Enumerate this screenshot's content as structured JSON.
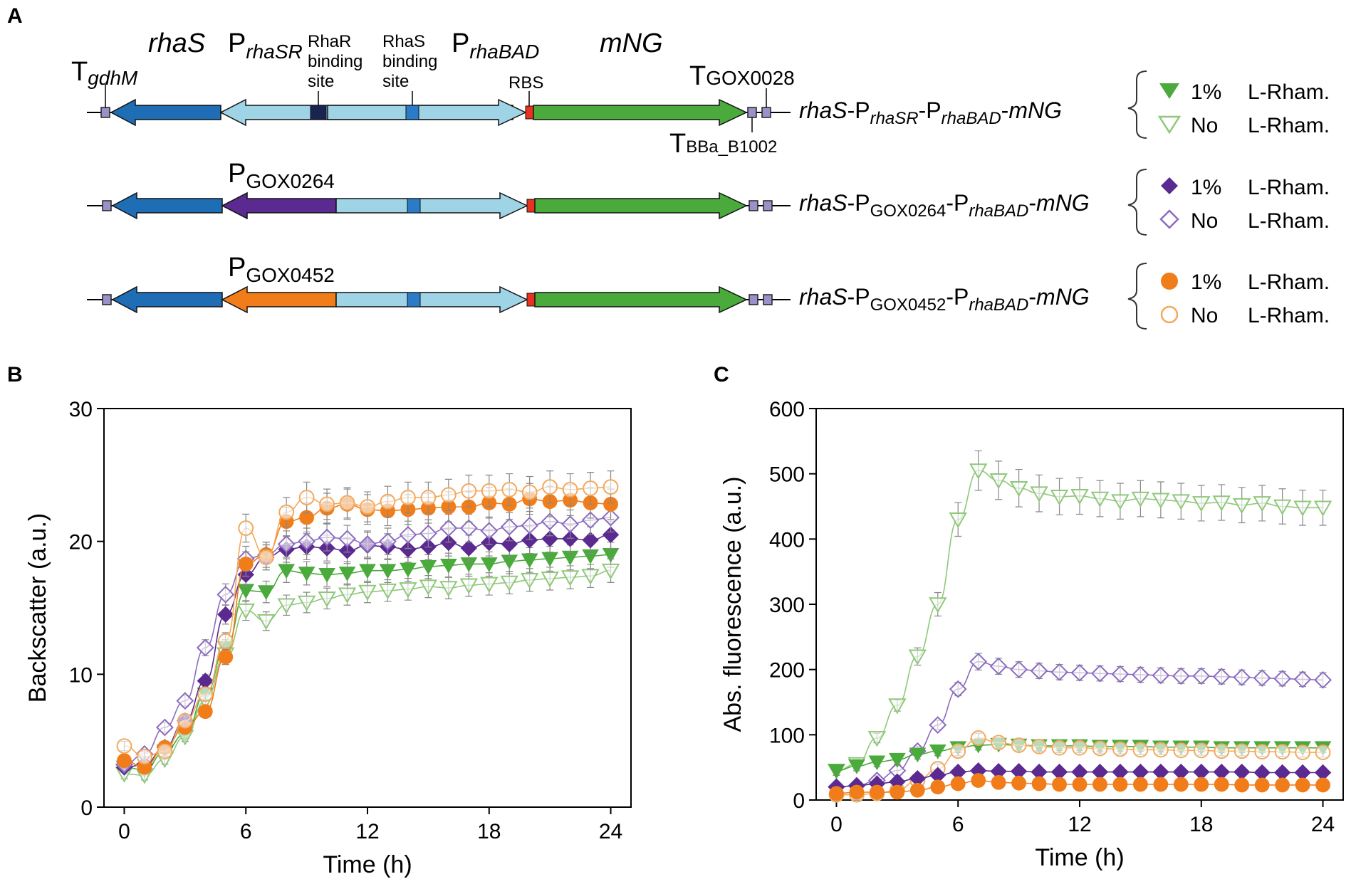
{
  "panels": {
    "a": "A",
    "b": "B",
    "c": "C"
  },
  "genes": {
    "rhaS": "rhaS",
    "mNG": "mNG",
    "p": "P",
    "t": "T",
    "rhaSR_sub": "rhaSR",
    "rhaBAD_sub": "rhaBAD",
    "gdhM_sub": "gdhM",
    "gox0028_sub": "GOX0028",
    "bba_sub": "BBa_B1002",
    "gox0264_sub": "GOX0264",
    "gox0452_sub": "GOX0452"
  },
  "site_labels": {
    "rhaR_l1": "RhaR",
    "rhaR_l2": "binding",
    "rhaR_l3": "site",
    "rhaS_l1": "RhaS",
    "rhaS_l2": "binding",
    "rhaS_l3": "site",
    "rbs": "RBS"
  },
  "constructs": [
    {
      "pre": "rhaS",
      "dash1": "-P",
      "sub1": "rhaSR",
      "dash2": "-P",
      "sub2": "rhaBAD",
      "dash3": "-",
      "post": "mNG"
    },
    {
      "pre": "rhaS",
      "dash1": "-P",
      "sub1": "GOX0264",
      "dash2": "-P",
      "sub2": "rhaBAD",
      "dash3": "-",
      "post": "mNG"
    },
    {
      "pre": "rhaS",
      "dash1": "-P",
      "sub1": "GOX0452",
      "dash2": "-P",
      "sub2": "rhaBAD",
      "dash3": "-",
      "post": "mNG"
    }
  ],
  "legend": {
    "induced": "1%",
    "uninduced": "No",
    "compound": "L-Rham."
  },
  "colors": {
    "green": "#4aaa3c",
    "green_light": "#8fc87a",
    "purple": "#5b2a91",
    "purple_light": "#8c6bbf",
    "orange": "#f07d1a",
    "orange_light": "#f2a95e",
    "blue_dark": "#1f6db5",
    "blue_light": "#9fd3e6",
    "blue_mid": "#2a7cc6",
    "navy": "#1a2450",
    "red": "#e8321e",
    "term": "#9c90c8"
  },
  "chart_data": [
    {
      "type": "scatter",
      "id": "B",
      "xlabel": "Time (h)",
      "ylabel": "Backscatter (a.u.)",
      "xlim": [
        -1,
        25
      ],
      "ylim": [
        0,
        30
      ],
      "xticks": [
        "0",
        "6",
        "12",
        "18",
        "24"
      ],
      "xtick_values": [
        0,
        6,
        12,
        18,
        24
      ],
      "yticks": [
        "0",
        "10",
        "20",
        "30"
      ],
      "ytick_values": [
        0,
        10,
        20,
        30
      ],
      "x": [
        0,
        1,
        2,
        3,
        4,
        5,
        6,
        7,
        8,
        9,
        10,
        11,
        12,
        13,
        14,
        15,
        16,
        17,
        18,
        19,
        20,
        21,
        22,
        23,
        24
      ],
      "series": [
        {
          "name": "rhaSR 1% L-Rham.",
          "marker": "triangle-down",
          "filled": true,
          "color": "green",
          "values": [
            3.0,
            2.8,
            4.2,
            5.5,
            8.5,
            12.0,
            16.3,
            16.2,
            17.8,
            17.6,
            17.5,
            17.6,
            17.8,
            17.8,
            17.9,
            18.1,
            18.2,
            18.3,
            18.3,
            18.5,
            18.6,
            18.7,
            18.8,
            18.9,
            19.0
          ]
        },
        {
          "name": "rhaSR No L-Rham.",
          "marker": "triangle-down",
          "filled": false,
          "color": "green_light",
          "values": [
            2.5,
            2.4,
            3.6,
            5.3,
            8.0,
            11.5,
            14.8,
            14.0,
            15.2,
            15.4,
            15.7,
            16.0,
            16.2,
            16.3,
            16.4,
            16.6,
            16.5,
            16.7,
            16.8,
            16.9,
            17.1,
            17.2,
            17.3,
            17.4,
            17.8
          ]
        },
        {
          "name": "GOX0264 1% L-Rham.",
          "marker": "diamond",
          "filled": true,
          "color": "purple",
          "values": [
            3.0,
            3.2,
            4.5,
            6.5,
            9.5,
            14.5,
            17.5,
            18.8,
            19.4,
            19.6,
            19.5,
            19.3,
            19.7,
            19.6,
            19.4,
            19.6,
            19.9,
            19.5,
            19.9,
            19.8,
            20.1,
            20.2,
            20.2,
            20.1,
            20.5
          ]
        },
        {
          "name": "GOX0264 No L-Rham.",
          "marker": "diamond",
          "filled": false,
          "color": "purple_light",
          "values": [
            3.2,
            4.0,
            6.0,
            8.0,
            12.0,
            16.0,
            18.7,
            19.0,
            19.8,
            20.0,
            20.3,
            20.2,
            19.8,
            20.0,
            20.5,
            20.6,
            21.0,
            21.0,
            20.8,
            21.1,
            21.2,
            21.5,
            21.3,
            21.6,
            21.8
          ]
        },
        {
          "name": "GOX0452 1% L-Rham.",
          "marker": "circle",
          "filled": true,
          "color": "orange",
          "values": [
            3.5,
            3.0,
            4.5,
            6.0,
            7.2,
            11.3,
            18.3,
            19.0,
            21.5,
            21.8,
            22.5,
            22.8,
            22.4,
            22.3,
            22.4,
            22.5,
            22.6,
            22.6,
            22.9,
            22.8,
            23.2,
            23.0,
            23.1,
            22.9,
            22.8
          ]
        },
        {
          "name": "GOX0452 No L-Rham.",
          "marker": "circle",
          "filled": false,
          "color": "orange_light",
          "values": [
            4.6,
            3.8,
            4.2,
            6.5,
            8.5,
            12.5,
            21.0,
            18.8,
            22.2,
            23.3,
            22.8,
            22.9,
            22.6,
            23.0,
            23.3,
            23.3,
            23.5,
            23.8,
            23.8,
            23.9,
            23.7,
            24.1,
            23.9,
            24.0,
            24.1
          ]
        }
      ]
    },
    {
      "type": "scatter",
      "id": "C",
      "xlabel": "Time (h)",
      "ylabel": "Abs. fluorescence (a.u.)",
      "xlim": [
        -1,
        25
      ],
      "ylim": [
        0,
        600
      ],
      "xticks": [
        "0",
        "6",
        "12",
        "18",
        "24"
      ],
      "xtick_values": [
        0,
        6,
        12,
        18,
        24
      ],
      "yticks": [
        "0",
        "100",
        "200",
        "300",
        "400",
        "500",
        "600"
      ],
      "ytick_values": [
        0,
        100,
        200,
        300,
        400,
        500,
        600
      ],
      "x": [
        0,
        1,
        2,
        3,
        4,
        5,
        6,
        7,
        8,
        9,
        10,
        11,
        12,
        13,
        14,
        15,
        16,
        17,
        18,
        19,
        20,
        21,
        22,
        23,
        24
      ],
      "series": [
        {
          "name": "rhaSR No L-Rham.",
          "marker": "triangle-down",
          "filled": false,
          "color": "green_light",
          "values": [
            45,
            55,
            95,
            145,
            220,
            300,
            430,
            505,
            490,
            478,
            470,
            465,
            466,
            462,
            458,
            462,
            460,
            458,
            455,
            456,
            452,
            455,
            450,
            448,
            448
          ]
        },
        {
          "name": "GOX0264 No L-Rham.",
          "marker": "diamond",
          "filled": false,
          "color": "purple_light",
          "values": [
            20,
            22,
            30,
            45,
            75,
            115,
            170,
            212,
            205,
            200,
            198,
            196,
            195,
            194,
            193,
            192,
            191,
            190,
            190,
            189,
            188,
            187,
            186,
            185,
            184
          ]
        },
        {
          "name": "rhaSR 1% L-Rham.",
          "marker": "triangle-down",
          "filled": true,
          "color": "green",
          "values": [
            45,
            52,
            58,
            62,
            70,
            75,
            80,
            84,
            85,
            84,
            83,
            83,
            83,
            82,
            82,
            82,
            81,
            81,
            81,
            80,
            80,
            80,
            80,
            80,
            80
          ]
        },
        {
          "name": "GOX0452 No L-Rham.",
          "marker": "circle",
          "filled": false,
          "color": "orange_light",
          "values": [
            8,
            8,
            10,
            15,
            30,
            48,
            75,
            95,
            88,
            84,
            82,
            80,
            80,
            79,
            78,
            77,
            77,
            76,
            76,
            75,
            75,
            74,
            74,
            73,
            73
          ]
        },
        {
          "name": "GOX0264 1% L-Rham.",
          "marker": "diamond",
          "filled": true,
          "color": "purple",
          "values": [
            20,
            22,
            25,
            28,
            33,
            38,
            43,
            45,
            44,
            44,
            43,
            43,
            43,
            43,
            43,
            43,
            43,
            43,
            43,
            43,
            43,
            42,
            42,
            42,
            42
          ]
        },
        {
          "name": "GOX0452 1% L-Rham.",
          "marker": "circle",
          "filled": true,
          "color": "orange",
          "values": [
            10,
            12,
            12,
            12,
            15,
            20,
            25,
            30,
            27,
            26,
            25,
            24,
            24,
            24,
            24,
            24,
            24,
            24,
            24,
            24,
            23,
            23,
            23,
            23,
            23
          ]
        }
      ]
    }
  ]
}
